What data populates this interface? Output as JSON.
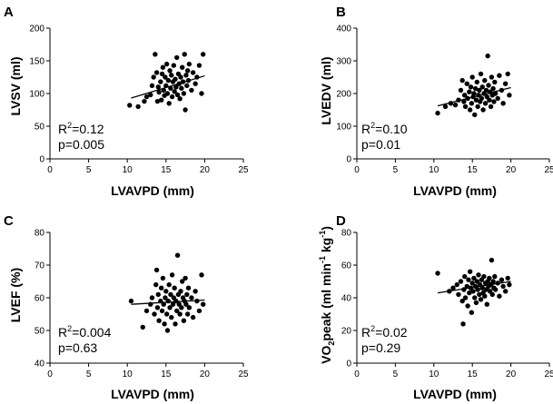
{
  "chart_data": [
    {
      "type": "scatter",
      "panel": "A",
      "xlabel": "LVAVPD (mm)",
      "ylabel": "LVSV (ml)",
      "xlim": [
        0,
        25
      ],
      "ylim": [
        0,
        200
      ],
      "xticks": [
        "0",
        "5",
        "10",
        "15",
        "20",
        "25"
      ],
      "yticks": [
        "0",
        "50",
        "100",
        "150",
        "200"
      ],
      "stat_r2": "0.12",
      "stat_p": "p=0.005",
      "trendline": {
        "x": [
          10.5,
          20.0
        ],
        "y": [
          93,
          127
        ]
      },
      "points": [
        [
          10.3,
          82
        ],
        [
          11.4,
          80
        ],
        [
          12.2,
          88
        ],
        [
          12.5,
          95
        ],
        [
          13.0,
          98
        ],
        [
          13.2,
          112
        ],
        [
          13.4,
          125
        ],
        [
          13.6,
          160
        ],
        [
          13.8,
          132
        ],
        [
          13.9,
          88
        ],
        [
          14.0,
          110
        ],
        [
          14.1,
          102
        ],
        [
          14.3,
          118
        ],
        [
          14.4,
          90
        ],
        [
          14.5,
          130
        ],
        [
          14.6,
          140
        ],
        [
          14.7,
          105
        ],
        [
          14.8,
          97
        ],
        [
          14.9,
          125
        ],
        [
          15.0,
          112
        ],
        [
          15.1,
          145
        ],
        [
          15.2,
          100
        ],
        [
          15.3,
          120
        ],
        [
          15.4,
          85
        ],
        [
          15.5,
          135
        ],
        [
          15.6,
          108
        ],
        [
          15.7,
          128
        ],
        [
          15.8,
          95
        ],
        [
          15.9,
          118
        ],
        [
          16.0,
          143
        ],
        [
          16.1,
          103
        ],
        [
          16.2,
          122
        ],
        [
          16.3,
          110
        ],
        [
          16.4,
          155
        ],
        [
          16.5,
          98
        ],
        [
          16.6,
          130
        ],
        [
          16.7,
          115
        ],
        [
          16.8,
          92
        ],
        [
          16.9,
          125
        ],
        [
          17.0,
          108
        ],
        [
          17.1,
          140
        ],
        [
          17.2,
          118
        ],
        [
          17.3,
          100
        ],
        [
          17.4,
          160
        ],
        [
          17.5,
          75
        ],
        [
          17.6,
          128
        ],
        [
          17.7,
          112
        ],
        [
          17.8,
          135
        ],
        [
          17.9,
          120
        ],
        [
          18.0,
          145
        ],
        [
          18.3,
          105
        ],
        [
          18.5,
          132
        ],
        [
          18.8,
          115
        ],
        [
          19.0,
          125
        ],
        [
          19.3,
          143
        ],
        [
          19.6,
          100
        ],
        [
          19.8,
          160
        ]
      ]
    },
    {
      "type": "scatter",
      "panel": "B",
      "xlabel": "LVAVPD (mm)",
      "ylabel": "LVEDV (ml)",
      "xlim": [
        0,
        25
      ],
      "ylim": [
        0,
        400
      ],
      "xticks": [
        "0",
        "5",
        "10",
        "15",
        "20",
        "25"
      ],
      "yticks": [
        "0",
        "100",
        "200",
        "300",
        "400"
      ],
      "stat_r2": "0.10",
      "stat_p": "p=0.01",
      "trendline": {
        "x": [
          10.5,
          20.0
        ],
        "y": [
          162,
          218
        ]
      },
      "points": [
        [
          10.5,
          140
        ],
        [
          11.5,
          160
        ],
        [
          12.2,
          170
        ],
        [
          12.8,
          165
        ],
        [
          13.2,
          180
        ],
        [
          13.5,
          210
        ],
        [
          13.7,
          240
        ],
        [
          13.9,
          175
        ],
        [
          14.0,
          195
        ],
        [
          14.1,
          160
        ],
        [
          14.3,
          230
        ],
        [
          14.4,
          185
        ],
        [
          14.6,
          205
        ],
        [
          14.7,
          150
        ],
        [
          14.8,
          220
        ],
        [
          14.9,
          170
        ],
        [
          15.0,
          250
        ],
        [
          15.1,
          190
        ],
        [
          15.2,
          200
        ],
        [
          15.3,
          135
        ],
        [
          15.4,
          215
        ],
        [
          15.5,
          180
        ],
        [
          15.6,
          235
        ],
        [
          15.7,
          160
        ],
        [
          15.8,
          195
        ],
        [
          15.9,
          210
        ],
        [
          16.0,
          175
        ],
        [
          16.1,
          260
        ],
        [
          16.2,
          185
        ],
        [
          16.3,
          220
        ],
        [
          16.4,
          150
        ],
        [
          16.5,
          200
        ],
        [
          16.6,
          240
        ],
        [
          16.7,
          170
        ],
        [
          16.8,
          210
        ],
        [
          16.9,
          190
        ],
        [
          17.0,
          315
        ],
        [
          17.1,
          225
        ],
        [
          17.2,
          180
        ],
        [
          17.3,
          205
        ],
        [
          17.4,
          160
        ],
        [
          17.5,
          250
        ],
        [
          17.6,
          195
        ],
        [
          17.7,
          215
        ],
        [
          17.8,
          175
        ],
        [
          17.9,
          235
        ],
        [
          18.0,
          200
        ],
        [
          18.3,
          185
        ],
        [
          18.5,
          255
        ],
        [
          18.8,
          210
        ],
        [
          19.0,
          170
        ],
        [
          19.3,
          230
        ],
        [
          19.6,
          260
        ],
        [
          19.8,
          195
        ]
      ]
    },
    {
      "type": "scatter",
      "panel": "C",
      "xlabel": "LVAVPD (mm)",
      "ylabel": "LVEF (%)",
      "xlim": [
        0,
        25
      ],
      "ylim": [
        40,
        80
      ],
      "xticks": [
        "0",
        "5",
        "10",
        "15",
        "20",
        "25"
      ],
      "yticks": [
        "40",
        "50",
        "60",
        "70",
        "80"
      ],
      "stat_r2": "0.004",
      "stat_p": "p=0.63",
      "trendline": {
        "x": [
          10.5,
          20.0
        ],
        "y": [
          58.0,
          59.3
        ]
      },
      "points": [
        [
          10.5,
          59
        ],
        [
          12.0,
          51
        ],
        [
          12.5,
          56
        ],
        [
          13.0,
          58
        ],
        [
          13.2,
          60
        ],
        [
          13.5,
          55
        ],
        [
          13.7,
          64
        ],
        [
          13.8,
          68.5
        ],
        [
          13.9,
          57
        ],
        [
          14.0,
          61
        ],
        [
          14.1,
          53
        ],
        [
          14.3,
          59
        ],
        [
          14.4,
          63
        ],
        [
          14.5,
          56
        ],
        [
          14.6,
          66
        ],
        [
          14.7,
          58
        ],
        [
          14.8,
          52
        ],
        [
          14.9,
          60
        ],
        [
          15.0,
          62
        ],
        [
          15.1,
          55
        ],
        [
          15.2,
          50
        ],
        [
          15.3,
          59
        ],
        [
          15.4,
          64
        ],
        [
          15.5,
          57
        ],
        [
          15.6,
          61
        ],
        [
          15.7,
          54
        ],
        [
          15.8,
          67
        ],
        [
          15.9,
          58
        ],
        [
          16.0,
          60
        ],
        [
          16.1,
          63
        ],
        [
          16.2,
          52
        ],
        [
          16.3,
          59
        ],
        [
          16.4,
          56
        ],
        [
          16.5,
          73
        ],
        [
          16.6,
          61
        ],
        [
          16.7,
          58
        ],
        [
          16.8,
          55
        ],
        [
          16.9,
          62
        ],
        [
          17.0,
          57
        ],
        [
          17.1,
          65
        ],
        [
          17.2,
          60
        ],
        [
          17.3,
          53
        ],
        [
          17.4,
          59
        ],
        [
          17.5,
          66
        ],
        [
          17.6,
          58
        ],
        [
          17.7,
          61
        ],
        [
          17.8,
          55
        ],
        [
          17.9,
          63
        ],
        [
          18.0,
          57
        ],
        [
          18.3,
          60
        ],
        [
          18.5,
          54
        ],
        [
          18.8,
          62
        ],
        [
          19.0,
          59
        ],
        [
          19.3,
          56
        ],
        [
          19.6,
          67
        ],
        [
          19.8,
          58
        ]
      ]
    },
    {
      "type": "scatter",
      "panel": "D",
      "xlabel": "LVAVPD (mm)",
      "ylabel_base": "VO",
      "ylabel_sub": "2",
      "ylabel_peak": "peak (ml min",
      "ylabel_sup1": "-1",
      "ylabel_kg": " kg",
      "ylabel_sup2": "-1",
      "ylabel_close": ")",
      "xlim": [
        0,
        25
      ],
      "ylim": [
        0,
        80
      ],
      "xticks": [
        "0",
        "5",
        "10",
        "15",
        "20",
        "25"
      ],
      "yticks": [
        "0",
        "20",
        "40",
        "60",
        "80"
      ],
      "stat_r2": "0.02",
      "stat_p": "p=0.29",
      "trendline": {
        "x": [
          10.5,
          20.0
        ],
        "y": [
          43,
          50
        ]
      },
      "points": [
        [
          10.5,
          55
        ],
        [
          12.0,
          44
        ],
        [
          12.5,
          46
        ],
        [
          13.0,
          48
        ],
        [
          13.2,
          42
        ],
        [
          13.5,
          50
        ],
        [
          13.7,
          38
        ],
        [
          13.8,
          24
        ],
        [
          13.9,
          45
        ],
        [
          14.0,
          53
        ],
        [
          14.1,
          40
        ],
        [
          14.3,
          47
        ],
        [
          14.4,
          35
        ],
        [
          14.5,
          51
        ],
        [
          14.6,
          43
        ],
        [
          14.7,
          56
        ],
        [
          14.8,
          46
        ],
        [
          14.9,
          31
        ],
        [
          15.0,
          49
        ],
        [
          15.1,
          44
        ],
        [
          15.2,
          52
        ],
        [
          15.3,
          40
        ],
        [
          15.4,
          47
        ],
        [
          15.5,
          37
        ],
        [
          15.6,
          50
        ],
        [
          15.7,
          45
        ],
        [
          15.8,
          54
        ],
        [
          15.9,
          42
        ],
        [
          16.0,
          48
        ],
        [
          16.1,
          39
        ],
        [
          16.2,
          51
        ],
        [
          16.3,
          46
        ],
        [
          16.4,
          43
        ],
        [
          16.5,
          53
        ],
        [
          16.6,
          41
        ],
        [
          16.7,
          49
        ],
        [
          16.8,
          45
        ],
        [
          16.9,
          36
        ],
        [
          17.0,
          50
        ],
        [
          17.1,
          47
        ],
        [
          17.2,
          52
        ],
        [
          17.3,
          44
        ],
        [
          17.4,
          48
        ],
        [
          17.5,
          63
        ],
        [
          17.6,
          42
        ],
        [
          17.7,
          50
        ],
        [
          17.8,
          46
        ],
        [
          17.9,
          53
        ],
        [
          18.0,
          45
        ],
        [
          18.3,
          49
        ],
        [
          18.5,
          41
        ],
        [
          18.8,
          51
        ],
        [
          19.0,
          47
        ],
        [
          19.3,
          44
        ],
        [
          19.6,
          52
        ],
        [
          19.8,
          48
        ]
      ]
    }
  ]
}
